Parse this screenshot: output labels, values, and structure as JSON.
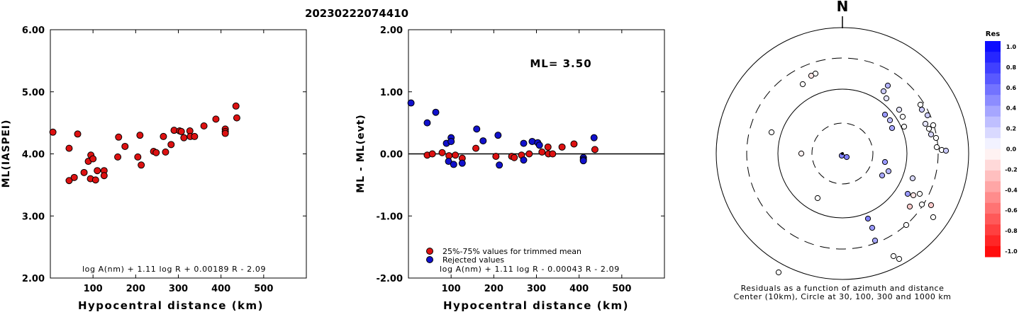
{
  "page_title": "20230222074410",
  "chart_data": [
    {
      "type": "scatter",
      "title": "",
      "xlabel": "Hypocentral distance (km)",
      "ylabel": "ML(IASPEI)",
      "xlim": [
        0,
        600
      ],
      "ylim": [
        2.0,
        6.0
      ],
      "x_ticks": [
        100,
        200,
        300,
        400,
        500
      ],
      "x_tick_labels": [
        "100",
        "200",
        "300",
        "400",
        "500"
      ],
      "y_ticks": [
        2.0,
        3.0,
        4.0,
        5.0,
        6.0
      ],
      "y_tick_labels": [
        "2.00",
        "3.00",
        "4.00",
        "5.00",
        "6.00"
      ],
      "annotation": "log A(nm) + 1.11 log R + 0.00189 R - 2.09",
      "point_color": "#dd1111",
      "points": [
        [
          6,
          4.35
        ],
        [
          44,
          4.09
        ],
        [
          44,
          3.57
        ],
        [
          56,
          3.62
        ],
        [
          64,
          4.32
        ],
        [
          79,
          3.7
        ],
        [
          89,
          3.88
        ],
        [
          95,
          3.98
        ],
        [
          94,
          3.6
        ],
        [
          100,
          3.92
        ],
        [
          106,
          3.58
        ],
        [
          110,
          3.73
        ],
        [
          126,
          3.73
        ],
        [
          126,
          3.65
        ],
        [
          158,
          3.95
        ],
        [
          160,
          4.27
        ],
        [
          175,
          4.12
        ],
        [
          205,
          3.95
        ],
        [
          210,
          4.3
        ],
        [
          213,
          3.82
        ],
        [
          242,
          4.04
        ],
        [
          248,
          4.02
        ],
        [
          265,
          4.28
        ],
        [
          270,
          4.03
        ],
        [
          283,
          4.15
        ],
        [
          290,
          4.38
        ],
        [
          303,
          4.37
        ],
        [
          307,
          4.36
        ],
        [
          313,
          4.26
        ],
        [
          327,
          4.37
        ],
        [
          328,
          4.28
        ],
        [
          338,
          4.28
        ],
        [
          360,
          4.45
        ],
        [
          388,
          4.56
        ],
        [
          410,
          4.4
        ],
        [
          410,
          4.36
        ],
        [
          410,
          4.33
        ],
        [
          435,
          4.77
        ],
        [
          437,
          4.58
        ]
      ]
    },
    {
      "type": "scatter",
      "title": "",
      "xlabel": "Hypocentral distance (km)",
      "ylabel": "ML - ML(evt)",
      "xlim": [
        0,
        600
      ],
      "ylim": [
        -2.0,
        2.0
      ],
      "x_ticks": [
        100,
        200,
        300,
        400,
        500
      ],
      "x_tick_labels": [
        "100",
        "200",
        "300",
        "400",
        "500"
      ],
      "y_ticks": [
        -2.0,
        -1.0,
        0.0,
        1.0,
        2.0
      ],
      "y_tick_labels": [
        "-2.00",
        "-1.00",
        "0.00",
        "1.00",
        "2.00"
      ],
      "reference_line": 0.0,
      "ml_label": "ML= 3.50",
      "annotation": "log A(nm) + 1.11 log R - 0.00043 R - 2.09",
      "series": [
        {
          "name": "25%-75% values for trimmed mean",
          "color": "#dd1111",
          "points": [
            [
              44,
              -0.02
            ],
            [
              56,
              0.0
            ],
            [
              79,
              0.02
            ],
            [
              95,
              -0.03
            ],
            [
              110,
              -0.02
            ],
            [
              126,
              -0.07
            ],
            [
              158,
              0.09
            ],
            [
              205,
              -0.04
            ],
            [
              242,
              -0.04
            ],
            [
              248,
              -0.06
            ],
            [
              265,
              -0.02
            ],
            [
              283,
              0.0
            ],
            [
              313,
              0.03
            ],
            [
              327,
              0.11
            ],
            [
              328,
              0.0
            ],
            [
              338,
              0.0
            ],
            [
              360,
              0.11
            ],
            [
              388,
              0.16
            ],
            [
              437,
              0.07
            ]
          ]
        },
        {
          "name": "Rejected values",
          "color": "#1111cc",
          "points": [
            [
              6,
              0.82
            ],
            [
              44,
              0.5
            ],
            [
              64,
              0.67
            ],
            [
              89,
              0.17
            ],
            [
              94,
              -0.12
            ],
            [
              100,
              0.26
            ],
            [
              100,
              0.2
            ],
            [
              106,
              -0.17
            ],
            [
              126,
              -0.15
            ],
            [
              160,
              0.4
            ],
            [
              175,
              0.21
            ],
            [
              210,
              0.3
            ],
            [
              213,
              -0.18
            ],
            [
              270,
              0.17
            ],
            [
              270,
              -0.1
            ],
            [
              290,
              0.2
            ],
            [
              303,
              0.18
            ],
            [
              307,
              0.14
            ],
            [
              410,
              -0.06
            ],
            [
              410,
              -0.09
            ],
            [
              410,
              -0.11
            ],
            [
              435,
              0.26
            ]
          ]
        }
      ]
    },
    {
      "type": "scatter",
      "title": "",
      "north_label": "N",
      "caption_line1": "Residuals as a function of azimuth and distance",
      "caption_line2": "Center (10km), Circle at 30, 100, 300 and 1000 km",
      "rings_km": [
        30,
        100,
        300,
        1000
      ],
      "points_dxdy_residual": [
        [
          -1,
          -3,
          0.5
        ],
        [
          6,
          -5,
          0.5
        ],
        [
          -58,
          0,
          -0.05
        ],
        [
          -38,
          113,
          0.0
        ],
        [
          -44,
          110,
          -0.1
        ],
        [
          -56,
          98,
          0.0
        ],
        [
          -100,
          30,
          0.0
        ],
        [
          -35,
          -63,
          0.0
        ],
        [
          64,
          96,
          0.3
        ],
        [
          58,
          88,
          0.2
        ],
        [
          62,
          78,
          0.1
        ],
        [
          60,
          55,
          0.4
        ],
        [
          67,
          47,
          0.25
        ],
        [
          70,
          36,
          0.35
        ],
        [
          80,
          62,
          0.1
        ],
        [
          85,
          52,
          0.0
        ],
        [
          87,
          38,
          0.0
        ],
        [
          110,
          69,
          0.0
        ],
        [
          112,
          62,
          0.2
        ],
        [
          120,
          54,
          0.2
        ],
        [
          117,
          42,
          0.1
        ],
        [
          122,
          35,
          0.0
        ],
        [
          128,
          40,
          0.0
        ],
        [
          125,
          27,
          0.15
        ],
        [
          132,
          22,
          0.0
        ],
        [
          133,
          9,
          0.0
        ],
        [
          140,
          5,
          0.0
        ],
        [
          146,
          4,
          0.2
        ],
        [
          99,
          -35,
          0.15
        ],
        [
          100,
          -59,
          -0.1
        ],
        [
          95,
          -75,
          -0.2
        ],
        [
          109,
          -57,
          0.0
        ],
        [
          112,
          -72,
          0.0
        ],
        [
          125,
          -73,
          -0.2
        ],
        [
          128,
          -90,
          0.0
        ],
        [
          92,
          -57,
          0.4
        ],
        [
          90,
          -101,
          0.0
        ],
        [
          60,
          -12,
          0.4
        ],
        [
          56,
          -31,
          0.35
        ],
        [
          46,
          -123,
          0.35
        ],
        [
          42,
          -105,
          0.4
        ],
        [
          65,
          -25,
          0.3
        ],
        [
          36,
          -92,
          0.5
        ],
        [
          72,
          -145,
          0.0
        ],
        [
          80,
          -149,
          0.0
        ],
        [
          -90,
          -168,
          0.0
        ]
      ],
      "colorbar_title": "Res",
      "colorbar_ticks": [
        "1.0",
        "0.8",
        "0.6",
        "0.4",
        "0.2",
        "0.0",
        "-0.2",
        "-0.4",
        "-0.6",
        "-0.8",
        "-1.0"
      ],
      "colorbar_range": [
        -1.0,
        1.0
      ]
    }
  ]
}
